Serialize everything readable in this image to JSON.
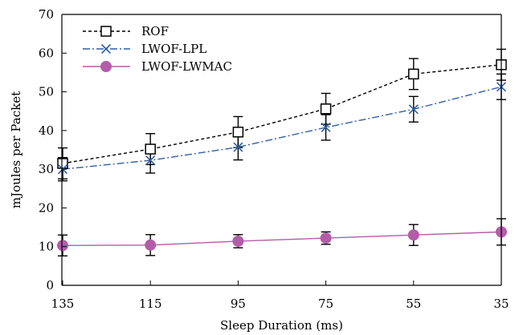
{
  "chart_data": {
    "type": "line",
    "title": "",
    "xlabel": "Sleep Duration (ms)",
    "ylabel": "mJoules per Packet",
    "categories": [
      "135",
      "115",
      "95",
      "75",
      "55",
      "35"
    ],
    "ylim": [
      0,
      70
    ],
    "yticks": [
      0,
      10,
      20,
      30,
      40,
      50,
      60,
      70
    ],
    "grid": false,
    "legend_position": "top-left",
    "series": [
      {
        "name": "ROF",
        "color": "#000000",
        "line_style": "dashed",
        "marker": "open-square",
        "values": [
          31.5,
          35.2,
          39.6,
          45.6,
          54.6,
          57.0
        ],
        "errors": [
          4.0,
          4.0,
          4.0,
          4.0,
          4.0,
          4.0
        ]
      },
      {
        "name": "LWOF-LPL",
        "color": "#2f5fa8",
        "line_style": "dash-dot",
        "marker": "x",
        "values": [
          30.0,
          32.3,
          35.7,
          40.8,
          45.5,
          51.3
        ],
        "errors": [
          3.0,
          3.3,
          3.3,
          3.3,
          3.3,
          3.3
        ]
      },
      {
        "name": "LWOF-LWMAC",
        "color": "#b35ca8",
        "line_style": "solid",
        "marker": "filled-circle",
        "values": [
          10.3,
          10.4,
          11.4,
          12.2,
          13.0,
          13.8
        ],
        "errors": [
          2.7,
          2.7,
          1.7,
          1.6,
          2.7,
          3.4
        ]
      }
    ]
  }
}
